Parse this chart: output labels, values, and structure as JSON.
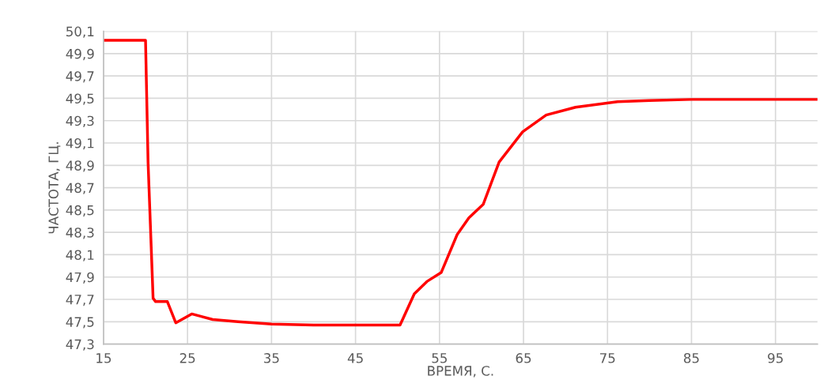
{
  "chart_data": {
    "type": "line",
    "xlabel": "ВРЕМЯ, С.",
    "ylabel": "ЧАСТОТА, ГЦ.",
    "xlim": [
      15,
      100
    ],
    "xticks": [
      15,
      25,
      35,
      45,
      55,
      65,
      75,
      85,
      95
    ],
    "ylim": [
      47.3,
      50.1
    ],
    "yticks": [
      {
        "value": 47.3,
        "label": "47,3"
      },
      {
        "value": 47.5,
        "label": "47,5"
      },
      {
        "value": 47.7,
        "label": "47,7"
      },
      {
        "value": 47.9,
        "label": "47,9"
      },
      {
        "value": 48.1,
        "label": "48,1"
      },
      {
        "value": 48.3,
        "label": "48,3"
      },
      {
        "value": 48.5,
        "label": "48,5"
      },
      {
        "value": 48.7,
        "label": "48,7"
      },
      {
        "value": 48.9,
        "label": "48,9"
      },
      {
        "value": 49.1,
        "label": "49,1"
      },
      {
        "value": 49.3,
        "label": "49,3"
      },
      {
        "value": 49.5,
        "label": "49,5"
      },
      {
        "value": 49.7,
        "label": "49,7"
      },
      {
        "value": 49.9,
        "label": "49,9"
      },
      {
        "value": 50.1,
        "label": "50,1"
      }
    ],
    "grid": true,
    "marker": "none",
    "line_style": "solid",
    "series": [
      {
        "color": "#ff0000",
        "x": [
          15,
          20.0,
          20.3,
          20.9,
          21.2,
          22.6,
          23.6,
          25.5,
          28,
          31,
          35,
          40,
          45,
          50.3,
          52.0,
          53.5,
          55.2,
          57.1,
          58.5,
          60.2,
          62.1,
          64.9,
          67.7,
          71.2,
          76.2,
          80,
          85,
          90,
          95,
          100
        ],
        "values": [
          50.02,
          50.02,
          48.93,
          47.71,
          47.68,
          47.68,
          47.49,
          47.57,
          47.52,
          47.5,
          47.48,
          47.47,
          47.47,
          47.47,
          47.75,
          47.86,
          47.94,
          48.28,
          48.43,
          48.55,
          48.93,
          49.2,
          49.35,
          49.42,
          49.47,
          49.48,
          49.49,
          49.49,
          49.49,
          49.49
        ]
      }
    ]
  }
}
